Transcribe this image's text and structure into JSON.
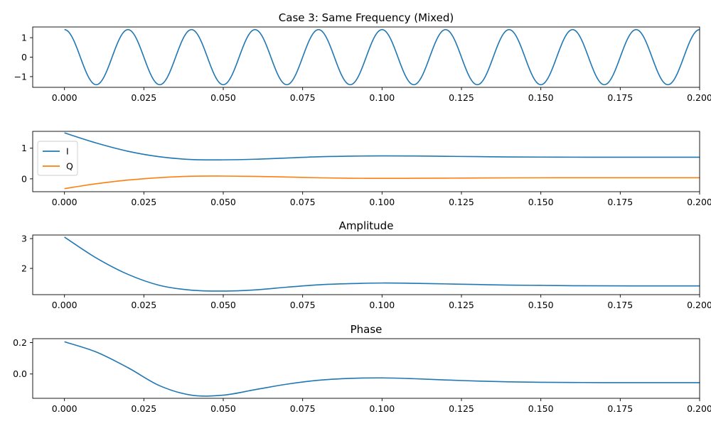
{
  "chart_data": [
    {
      "type": "line",
      "title": "Case 3: Same Frequency (Mixed)",
      "xlabel": "",
      "ylabel": "",
      "xlim": [
        -0.01,
        0.2
      ],
      "ylim": [
        -1.55,
        1.55
      ],
      "xticks": [
        0.0,
        0.025,
        0.05,
        0.075,
        0.1,
        0.125,
        0.15,
        0.175,
        0.2
      ],
      "xtick_labels": [
        "0.000",
        "0.025",
        "0.050",
        "0.075",
        "0.100",
        "0.125",
        "0.150",
        "0.175",
        "0.200"
      ],
      "yticks": [
        -1,
        0,
        1
      ],
      "ytick_labels": [
        "−1",
        "0",
        "1"
      ],
      "grid": false,
      "series": [
        {
          "color": "#1f77b4",
          "function": "1.414 * cos(2*pi*50*t)",
          "amplitude": 1.414,
          "frequency_hz": 50,
          "x_range": [
            0.0,
            0.2
          ]
        }
      ]
    },
    {
      "type": "line",
      "title": "",
      "xlabel": "",
      "ylabel": "",
      "xlim": [
        -0.01,
        0.2
      ],
      "ylim": [
        -0.42,
        1.55
      ],
      "xticks": [
        0.0,
        0.025,
        0.05,
        0.075,
        0.1,
        0.125,
        0.15,
        0.175,
        0.2
      ],
      "xtick_labels": [
        "0.000",
        "0.025",
        "0.050",
        "0.075",
        "0.100",
        "0.125",
        "0.150",
        "0.175",
        "0.200"
      ],
      "yticks": [
        0,
        1
      ],
      "ytick_labels": [
        "0",
        "1"
      ],
      "grid": false,
      "legend": {
        "placement": "upper-left"
      },
      "series": [
        {
          "name": "I",
          "color": "#1f77b4",
          "x": [
            0.0,
            0.01,
            0.02,
            0.03,
            0.04,
            0.05,
            0.06,
            0.07,
            0.08,
            0.09,
            0.1,
            0.11,
            0.12,
            0.13,
            0.14,
            0.15,
            0.16,
            0.17,
            0.18,
            0.19,
            0.2
          ],
          "y": [
            1.5,
            1.17,
            0.9,
            0.72,
            0.63,
            0.62,
            0.64,
            0.68,
            0.72,
            0.74,
            0.75,
            0.745,
            0.735,
            0.725,
            0.715,
            0.71,
            0.707,
            0.705,
            0.705,
            0.705,
            0.705
          ]
        },
        {
          "name": "Q",
          "color": "#ff7f0e",
          "x": [
            0.0,
            0.01,
            0.02,
            0.03,
            0.04,
            0.05,
            0.06,
            0.07,
            0.08,
            0.09,
            0.1,
            0.11,
            0.12,
            0.13,
            0.14,
            0.15,
            0.16,
            0.17,
            0.18,
            0.19,
            0.2
          ],
          "y": [
            -0.32,
            -0.16,
            -0.04,
            0.04,
            0.085,
            0.09,
            0.08,
            0.06,
            0.035,
            0.02,
            0.015,
            0.018,
            0.022,
            0.028,
            0.032,
            0.035,
            0.036,
            0.037,
            0.037,
            0.037,
            0.037
          ]
        }
      ]
    },
    {
      "type": "line",
      "title": "Amplitude",
      "xlabel": "",
      "ylabel": "",
      "xlim": [
        -0.01,
        0.2
      ],
      "ylim": [
        1.12,
        3.12
      ],
      "xticks": [
        0.0,
        0.025,
        0.05,
        0.075,
        0.1,
        0.125,
        0.15,
        0.175,
        0.2
      ],
      "xtick_labels": [
        "0.000",
        "0.025",
        "0.050",
        "0.075",
        "0.100",
        "0.125",
        "0.150",
        "0.175",
        "0.200"
      ],
      "yticks": [
        2,
        3
      ],
      "ytick_labels": [
        "2",
        "3"
      ],
      "grid": false,
      "series": [
        {
          "color": "#1f77b4",
          "x": [
            0.0,
            0.01,
            0.02,
            0.03,
            0.04,
            0.05,
            0.06,
            0.07,
            0.08,
            0.09,
            0.1,
            0.11,
            0.12,
            0.13,
            0.14,
            0.15,
            0.16,
            0.17,
            0.18,
            0.19,
            0.2
          ],
          "y": [
            3.05,
            2.35,
            1.8,
            1.43,
            1.27,
            1.24,
            1.28,
            1.37,
            1.45,
            1.49,
            1.51,
            1.5,
            1.48,
            1.46,
            1.44,
            1.43,
            1.42,
            1.415,
            1.414,
            1.414,
            1.414
          ]
        }
      ]
    },
    {
      "type": "line",
      "title": "Phase",
      "xlabel": "",
      "ylabel": "",
      "xlim": [
        -0.01,
        0.2
      ],
      "ylim": [
        -0.155,
        0.225
      ],
      "xticks": [
        0.0,
        0.025,
        0.05,
        0.075,
        0.1,
        0.125,
        0.15,
        0.175,
        0.2
      ],
      "xtick_labels": [
        "0.000",
        "0.025",
        "0.050",
        "0.075",
        "0.100",
        "0.125",
        "0.150",
        "0.175",
        "0.200"
      ],
      "yticks": [
        0.0,
        0.2
      ],
      "ytick_labels": [
        "0.0",
        "0.2"
      ],
      "grid": false,
      "series": [
        {
          "color": "#1f77b4",
          "x": [
            0.0,
            0.01,
            0.02,
            0.03,
            0.04,
            0.05,
            0.06,
            0.07,
            0.08,
            0.09,
            0.1,
            0.11,
            0.12,
            0.13,
            0.14,
            0.15,
            0.16,
            0.17,
            0.18,
            0.19,
            0.2
          ],
          "y": [
            0.205,
            0.14,
            0.04,
            -0.075,
            -0.135,
            -0.135,
            -0.1,
            -0.065,
            -0.04,
            -0.028,
            -0.025,
            -0.03,
            -0.038,
            -0.045,
            -0.05,
            -0.053,
            -0.054,
            -0.055,
            -0.055,
            -0.055,
            -0.055
          ]
        }
      ]
    }
  ]
}
